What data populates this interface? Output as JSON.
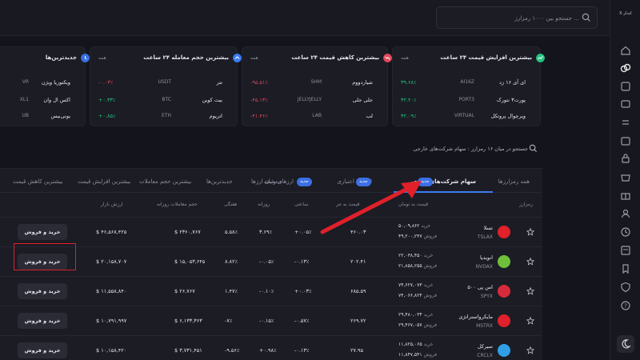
{
  "header": {
    "search_placeholder": "جستجو بین ۱۰۰۰ رمزارز ...",
    "logo_text": "X کندلز"
  },
  "cards": [
    {
      "title": "بیشترین افزایش قیمت ۲۴ ساعت",
      "more": "همه",
      "icon_color": "#26c281",
      "rows": [
        {
          "name": "ای آی ۱۶ زد",
          "symbol": "AI16Z",
          "change": "۳۹.۶۸٪",
          "dir": "up"
        },
        {
          "name": "پورت۳ نتورک",
          "symbol": "PORT3",
          "change": "۳۲.۲۰٪",
          "dir": "up"
        },
        {
          "name": "ویرچوال پروتکل",
          "symbol": "VIRTUAL",
          "change": "۳۲.۰۹٪",
          "dir": "up"
        }
      ]
    },
    {
      "title": "بیشترین کاهش قیمت ۲۴ ساعت",
      "more": "همه",
      "icon_color": "#e0485a",
      "rows": [
        {
          "name": "شیاردووم",
          "symbol": "SHM",
          "change": "-۹۵.۵۱٪",
          "dir": "down"
        },
        {
          "name": "جلی جلی",
          "symbol": "JELLYJELLY",
          "change": "-۴۵.۱۳٪",
          "dir": "down"
        },
        {
          "name": "لب",
          "symbol": "LAB",
          "change": "-۴۱.۴۶٪",
          "dir": "down"
        }
      ]
    },
    {
      "title": "بیشترین حجم معامله ۲۴ ساعت",
      "more": "همه",
      "icon_color": "#3b7cf0",
      "rows": [
        {
          "name": "تتر",
          "symbol": "USDT",
          "change": "-۰.۰۳٪",
          "dir": "down"
        },
        {
          "name": "بیت کوین",
          "symbol": "BTC",
          "change": "+۰.۳۳٪",
          "dir": "up"
        },
        {
          "name": "اتریوم",
          "symbol": "ETH",
          "change": "+۰.۸۵٪",
          "dir": "up"
        }
      ]
    },
    {
      "title": "جدیدترین‌ها",
      "more": "",
      "icon_color": "#3b6fe3",
      "rows": [
        {
          "name": "ویکتوریا ویژن",
          "symbol": "VR",
          "change": "",
          "dir": "up"
        },
        {
          "name": "اکس ال وان",
          "symbol": "XL1",
          "change": "",
          "dir": "up"
        },
        {
          "name": "یونی‌بیس",
          "symbol": "UB",
          "change": "",
          "dir": "up"
        }
      ]
    }
  ],
  "search2": {
    "placeholder": "جستجو در میان ۱۶ رمزارز : سهام شرکت‌های خارجی"
  },
  "tabs": [
    {
      "label": "همه رمزارزها",
      "badge": ""
    },
    {
      "label": "سهام شرکت‌های خارجی",
      "badge": "جدید",
      "active": true
    },
    {
      "label": "ارزهای اعتباری",
      "badge": "جدید"
    },
    {
      "label": "ارزهای وثیقه",
      "badge": "جدید"
    },
    {
      "label": "دیده‌بان ارزها",
      "badge": ""
    },
    {
      "label": "جدیدترین‌ها",
      "badge": ""
    },
    {
      "label": "بیشترین حجم معاملات",
      "badge": ""
    },
    {
      "label": "بیشترین افزایش قیمت",
      "badge": ""
    },
    {
      "label": "بیشترین کاهش قیمت",
      "badge": ""
    }
  ],
  "table": {
    "headers": [
      "رمزارز",
      "قیمت به تومان",
      "قیمت به تتر",
      "ساعتی",
      "روزانه",
      "هفتگی",
      "حجم معاملات روزانه",
      "ارزش بازار"
    ],
    "rows": [
      {
        "name": "تسلا",
        "symbol": "TSLAX",
        "icon_color": "#e0202a",
        "buy": "۵۰,۰۹,۸۶۲",
        "sell": "۴۹,۲۰۰,۲۴۷",
        "usdt": "۴۶۰.۰۳",
        "hourly": "+۰.۰۵٪",
        "hourly_dir": "up",
        "daily": "۳.۶۹٪",
        "daily_dir": "up",
        "weekly": "۵.۵۸٪",
        "weekly_dir": "up",
        "volume": "$ ۲۳۶۰,۷۶۷",
        "mcap": "$ ۴۶,۵۶۸,۴۲۵"
      },
      {
        "name": "انویدیا",
        "symbol": "NVDAX",
        "icon_color": "#6fbf3a",
        "buy": "۲۲,۰۳۸,۴۵۰",
        "sell": "۲۱,۸۵۸,۲۵۵",
        "usdt": "۲۰۲.۴۱",
        "hourly": "-۰.۱۳٪",
        "hourly_dir": "down",
        "daily": "-۰.۰۵٪",
        "daily_dir": "down",
        "weekly": "۸.۸۲٪",
        "weekly_dir": "up",
        "volume": "$ ۱۵,۰۵۳,۶۴۵",
        "mcap": "$ ۲۰,۱۵۸,۷۰۷"
      },
      {
        "name": "اس پی ۵۰۰",
        "symbol": "SPYX",
        "icon_color": "#d72a3a",
        "buy": "۷۴,۶۲۷,۰۷۳",
        "sell": "۷۴,۰۶۶,۸۲۴",
        "usdt": "۶۸۵.۵۹",
        "hourly": "+۰.۰۳٪",
        "hourly_dir": "up",
        "daily": "-۰.۱۰٪",
        "daily_dir": "down",
        "weekly": "۱.۴۷٪",
        "weekly_dir": "up",
        "volume": "$ ۲۶,۷۶۷",
        "mcap": "$ ۱۱,۵۵۸,۸۴۰"
      },
      {
        "name": "مایکرواستراتژی",
        "symbol": "MSTRX",
        "icon_color": "#e0202a",
        "buy": "۲۹,۴۸۰,۰۳۴",
        "sell": "۲۹,۴۶۷,۰۵۷",
        "usdt": "۲۶۹.۷۲",
        "hourly": "-۰.۵۷٪",
        "hourly_dir": "down",
        "daily": "-۰.۱۵٪",
        "daily_dir": "down",
        "weekly": "-۷٪",
        "weekly_dir": "down",
        "volume": "$ ۶,۱۳۳,۳۶۳",
        "mcap": "$ ۱۰,۷۹۱,۹۹۷"
      },
      {
        "name": "سیرکل",
        "symbol": "CRCLX",
        "icon_color": "#2f9fe6",
        "buy": "۱۱,۸۲۵,۰۶۵",
        "sell": "۱۱,۸۴۷,۵۴۱",
        "usdt": "۲۷.۹۵",
        "hourly": "-۰.۱۳٪",
        "hourly_dir": "down",
        "daily": "+۰.۹۸٪",
        "daily_dir": "up",
        "weekly": "-۹.۵۶٪",
        "weekly_dir": "down",
        "volume": "$ ۳,۷۳۱,۴۵۱",
        "mcap": "$ ۱۰,۱۵۸,۴۲۰"
      }
    ],
    "buy_label": "خرید",
    "sell_label": "فروش",
    "trade_button": "خرید و فروش"
  }
}
